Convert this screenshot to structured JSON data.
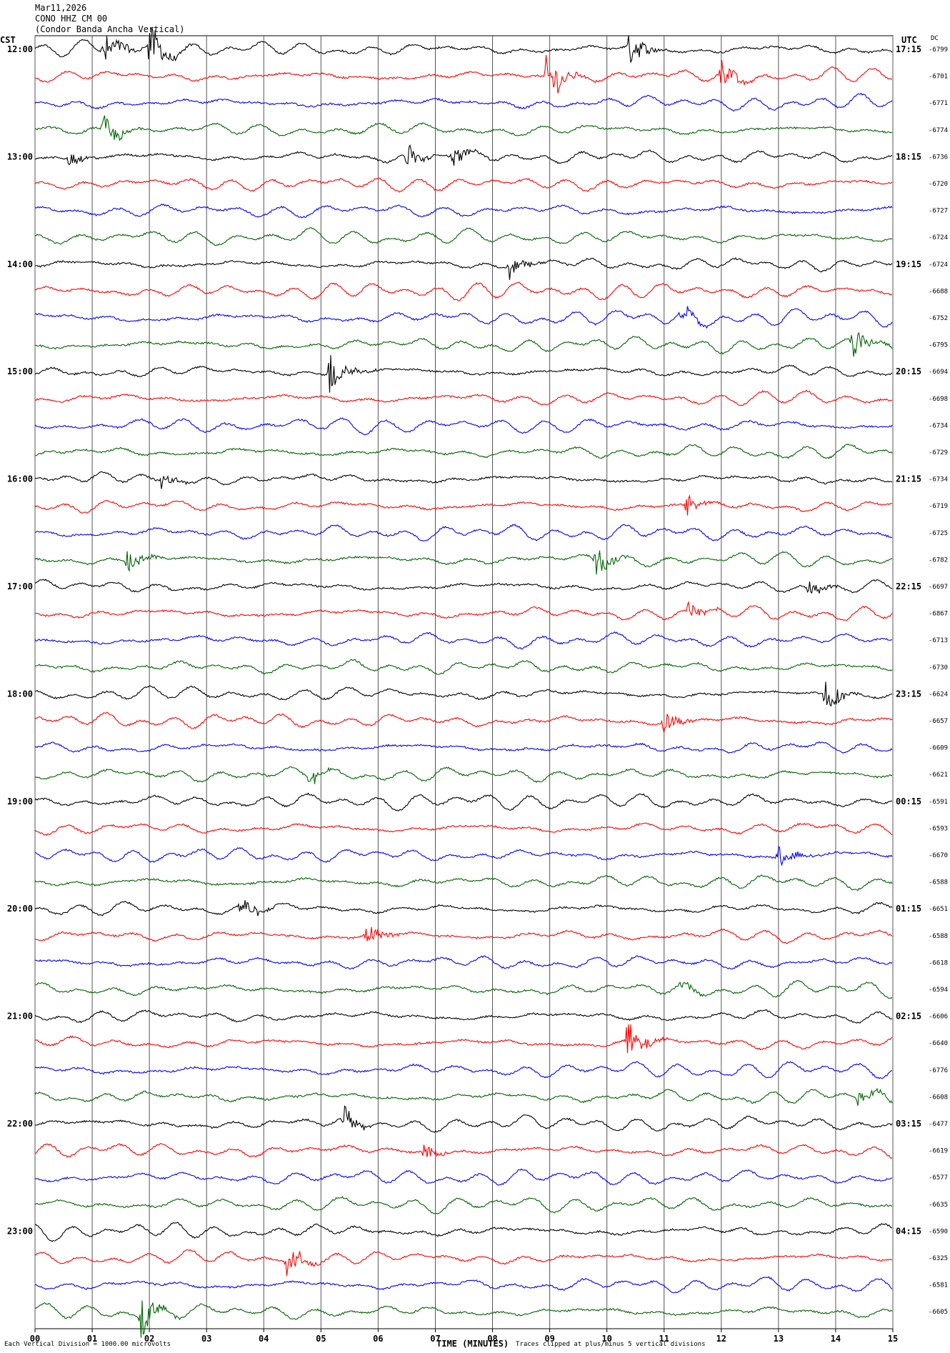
{
  "header": {
    "date": "Mar11,2026",
    "station": "CONO HHZ CM 00",
    "description": "(Condor Banda Ancha Vertical)"
  },
  "axes": {
    "left_title": "CST",
    "right_title": "UTC",
    "dc_title": "DC",
    "x_label": "TIME (MINUTES)"
  },
  "footer": {
    "scale_note": "Each Vertical Division = 1000.00 microvolts",
    "clip_note": "Traces clipped at plus/minus 5 vertical divisions"
  },
  "chart_data": {
    "type": "line",
    "title": "",
    "xlabel": "TIME (MINUTES)",
    "xlim": [
      0,
      15
    ],
    "x_ticks": [
      "00",
      "01",
      "02",
      "03",
      "04",
      "05",
      "06",
      "07",
      "08",
      "09",
      "10",
      "11",
      "12",
      "13",
      "14",
      "15"
    ],
    "trace_colors": [
      "#000000",
      "#ff0000",
      "#0000ff",
      "#006400"
    ],
    "left_hour_labels": [
      "12:00",
      "13:00",
      "14:00",
      "15:00",
      "16:00",
      "17:00",
      "18:00",
      "19:00",
      "20:00",
      "21:00",
      "22:00",
      "23:00"
    ],
    "right_hour_labels": [
      "17:15",
      "18:15",
      "19:15",
      "20:15",
      "21:15",
      "22:15",
      "23:15",
      "00:15",
      "01:15",
      "02:15",
      "03:15",
      "04:15"
    ],
    "dc_offsets": [
      "-6799",
      "-6701",
      "-6771",
      "-6774",
      "-6736",
      "-6720",
      "-6727",
      "-6724",
      "-6724",
      "-6688",
      "-6752",
      "-6795",
      "-6694",
      "-6698",
      "-6734",
      "-6729",
      "-6734",
      "-6719",
      "-6725",
      "-6782",
      "-6697",
      "-6867",
      "-6713",
      "-6730",
      "-6624",
      "-6657",
      "-6609",
      "-6621",
      "-6591",
      "-6593",
      "-6670",
      "-6588",
      "-6651",
      "-6588",
      "-6618",
      "-6594",
      "-6606",
      "-6640",
      "-6776",
      "-6608",
      "-6477",
      "-6619",
      "-6577",
      "-6635",
      "-6590",
      "-6325",
      "-6581",
      "-6605"
    ],
    "events": [
      {
        "trace": 0,
        "minute": 1.2,
        "amp": 2.2
      },
      {
        "trace": 0,
        "minute": 2.0,
        "amp": 2.5
      },
      {
        "trace": 0,
        "minute": 10.4,
        "amp": 2.0
      },
      {
        "trace": 1,
        "minute": 8.95,
        "amp": 3.0
      },
      {
        "trace": 1,
        "minute": 12.0,
        "amp": 1.6
      },
      {
        "trace": 3,
        "minute": 1.2,
        "amp": 1.8
      },
      {
        "trace": 4,
        "minute": 0.6,
        "amp": 0.9
      },
      {
        "trace": 4,
        "minute": 6.5,
        "amp": 1.3
      },
      {
        "trace": 4,
        "minute": 7.3,
        "amp": 1.1
      },
      {
        "trace": 8,
        "minute": 8.3,
        "amp": 1.3
      },
      {
        "trace": 10,
        "minute": 11.3,
        "amp": 0.8
      },
      {
        "trace": 11,
        "minute": 14.3,
        "amp": 2.0
      },
      {
        "trace": 12,
        "minute": 5.15,
        "amp": 2.5
      },
      {
        "trace": 16,
        "minute": 2.2,
        "amp": 1.0
      },
      {
        "trace": 17,
        "minute": 11.4,
        "amp": 1.2
      },
      {
        "trace": 19,
        "minute": 1.6,
        "amp": 1.5
      },
      {
        "trace": 19,
        "minute": 9.8,
        "amp": 1.6
      },
      {
        "trace": 20,
        "minute": 13.5,
        "amp": 1.0
      },
      {
        "trace": 21,
        "minute": 11.4,
        "amp": 1.1
      },
      {
        "trace": 24,
        "minute": 13.8,
        "amp": 2.2
      },
      {
        "trace": 25,
        "minute": 11.0,
        "amp": 1.3
      },
      {
        "trace": 27,
        "minute": 4.8,
        "amp": 0.9
      },
      {
        "trace": 30,
        "minute": 13.0,
        "amp": 1.4
      },
      {
        "trace": 32,
        "minute": 3.6,
        "amp": 1.3
      },
      {
        "trace": 33,
        "minute": 5.8,
        "amp": 1.3
      },
      {
        "trace": 35,
        "minute": 11.3,
        "amp": 0.8
      },
      {
        "trace": 37,
        "minute": 10.35,
        "amp": 2.5
      },
      {
        "trace": 39,
        "minute": 14.4,
        "amp": 0.9
      },
      {
        "trace": 40,
        "minute": 5.4,
        "amp": 1.4
      },
      {
        "trace": 41,
        "minute": 6.8,
        "amp": 0.9
      },
      {
        "trace": 45,
        "minute": 4.4,
        "amp": 2.0
      },
      {
        "trace": 47,
        "minute": 1.85,
        "amp": 2.2
      }
    ]
  }
}
